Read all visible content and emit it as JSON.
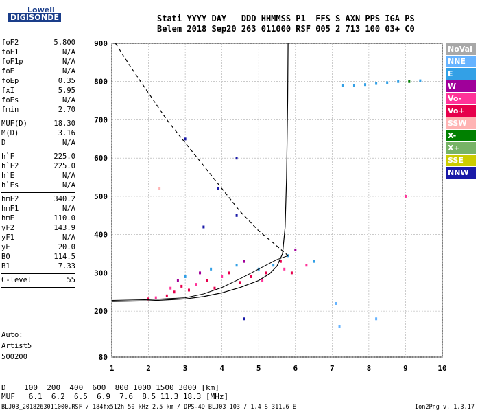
{
  "logo": {
    "top": "Lowell",
    "bottom": "DIGISONDE"
  },
  "header": {
    "line1": "Stati YYYY DAY   DDD HHMMSS P1  FFS S AXN PPS IGA PS",
    "line2": "Belem 2018 Sep20 263 011000 RSF 005 2 713 100 03+ C0"
  },
  "params_group1": [
    {
      "key": "foF2",
      "value": "5.800"
    },
    {
      "key": "foF1",
      "value": "N/A"
    },
    {
      "key": "foF1p",
      "value": "N/A"
    },
    {
      "key": "foE",
      "value": "N/A"
    },
    {
      "key": "foEp",
      "value": "0.35"
    },
    {
      "key": "fxI",
      "value": "5.95"
    },
    {
      "key": "foEs",
      "value": "N/A"
    },
    {
      "key": "fmin",
      "value": "2.70"
    }
  ],
  "params_group2": [
    {
      "key": "MUF(D)",
      "value": "18.30"
    },
    {
      "key": "M(D)",
      "value": "3.16"
    },
    {
      "key": "D",
      "value": "N/A"
    }
  ],
  "params_group3": [
    {
      "key": "h`F",
      "value": "225.0"
    },
    {
      "key": "h`F2",
      "value": "225.0"
    },
    {
      "key": "h`E",
      "value": "N/A"
    },
    {
      "key": "h`Es",
      "value": "N/A"
    }
  ],
  "params_group4": [
    {
      "key": "hmF2",
      "value": "340.2"
    },
    {
      "key": "hmF1",
      "value": "N/A"
    },
    {
      "key": "hmE",
      "value": "110.0"
    },
    {
      "key": "yF2",
      "value": "143.9"
    },
    {
      "key": "yF1",
      "value": "N/A"
    },
    {
      "key": "yE",
      "value": "20.0"
    },
    {
      "key": "B0",
      "value": "114.5"
    },
    {
      "key": "B1",
      "value": "7.33"
    }
  ],
  "clevel": {
    "key": "C-level",
    "value": "55"
  },
  "auto": {
    "line1": "Auto:",
    "line2": "Artist5",
    "line3": "500200"
  },
  "legend": [
    {
      "label": "NoVal",
      "color": "#a8a8a8"
    },
    {
      "label": "NNE",
      "color": "#66b3ff"
    },
    {
      "label": "E",
      "color": "#33a0e6"
    },
    {
      "label": "W",
      "color": "#a0009a"
    },
    {
      "label": "Vo-",
      "color": "#ff3399"
    },
    {
      "label": "Vo+",
      "color": "#e6004c"
    },
    {
      "label": "SSW",
      "color": "#ffb3b3"
    },
    {
      "label": "X-",
      "color": "#008000"
    },
    {
      "label": "X+",
      "color": "#77b366"
    },
    {
      "label": "SSE",
      "color": "#cccc00"
    },
    {
      "label": "NNW",
      "color": "#1a1aa8"
    }
  ],
  "dtable": {
    "row1": "D    100  200  400  600  800 1000 1500 3000 [km]",
    "row2": "MUF   6.1  6.2  6.5  6.9  7.6  8.5 11.3 18.3 [MHz]"
  },
  "footer": {
    "left": "BLJ03_2018263011000.RSF / 184fx512h 50 kHz 2.5 km / DPS-4D BLJ03 103 / 1.4 S 311.6 E",
    "right": "Ion2Png v. 1.3.17"
  },
  "chart_data": {
    "type": "scatter",
    "xlim": [
      1,
      10
    ],
    "ylim": [
      80,
      900
    ],
    "x_ticks": [
      "1",
      "2",
      "3",
      "4",
      "5",
      "6",
      "7",
      "8",
      "9",
      "10"
    ],
    "y_ticks": [
      "80",
      "200",
      "300",
      "400",
      "500",
      "600",
      "700",
      "800",
      "900"
    ],
    "grid": true,
    "ionogram_traces": [
      {
        "x": 2.0,
        "y": 232,
        "color": "#e6004c"
      },
      {
        "x": 2.2,
        "y": 235,
        "color": "#ff3399"
      },
      {
        "x": 2.5,
        "y": 240,
        "color": "#e6004c"
      },
      {
        "x": 2.6,
        "y": 260,
        "color": "#ff3399"
      },
      {
        "x": 2.7,
        "y": 250,
        "color": "#e6004c"
      },
      {
        "x": 2.8,
        "y": 280,
        "color": "#a0009a"
      },
      {
        "x": 2.9,
        "y": 265,
        "color": "#e6004c"
      },
      {
        "x": 3.0,
        "y": 290,
        "color": "#33a0e6"
      },
      {
        "x": 3.1,
        "y": 255,
        "color": "#e6004c"
      },
      {
        "x": 3.3,
        "y": 270,
        "color": "#ff3399"
      },
      {
        "x": 3.4,
        "y": 300,
        "color": "#a0009a"
      },
      {
        "x": 3.6,
        "y": 280,
        "color": "#e6004c"
      },
      {
        "x": 3.7,
        "y": 310,
        "color": "#33a0e6"
      },
      {
        "x": 3.8,
        "y": 260,
        "color": "#e6004c"
      },
      {
        "x": 4.0,
        "y": 290,
        "color": "#ff3399"
      },
      {
        "x": 4.2,
        "y": 300,
        "color": "#e6004c"
      },
      {
        "x": 4.4,
        "y": 320,
        "color": "#33a0e6"
      },
      {
        "x": 4.5,
        "y": 275,
        "color": "#e6004c"
      },
      {
        "x": 4.6,
        "y": 330,
        "color": "#a0009a"
      },
      {
        "x": 4.8,
        "y": 290,
        "color": "#e6004c"
      },
      {
        "x": 5.0,
        "y": 310,
        "color": "#33a0e6"
      },
      {
        "x": 5.1,
        "y": 280,
        "color": "#ff3399"
      },
      {
        "x": 5.2,
        "y": 300,
        "color": "#e6004c"
      },
      {
        "x": 5.4,
        "y": 320,
        "color": "#33a0e6"
      },
      {
        "x": 5.6,
        "y": 330,
        "color": "#e6004c"
      },
      {
        "x": 5.7,
        "y": 310,
        "color": "#ff3399"
      },
      {
        "x": 5.8,
        "y": 345,
        "color": "#33a0e6"
      },
      {
        "x": 5.9,
        "y": 300,
        "color": "#e6004c"
      },
      {
        "x": 6.0,
        "y": 360,
        "color": "#a0009a"
      },
      {
        "x": 6.3,
        "y": 320,
        "color": "#ff3399"
      },
      {
        "x": 6.5,
        "y": 330,
        "color": "#33a0e6"
      },
      {
        "x": 7.3,
        "y": 790,
        "color": "#33a0e6"
      },
      {
        "x": 7.6,
        "y": 790,
        "color": "#33a0e6"
      },
      {
        "x": 7.9,
        "y": 792,
        "color": "#33a0e6"
      },
      {
        "x": 8.2,
        "y": 795,
        "color": "#33a0e6"
      },
      {
        "x": 8.5,
        "y": 797,
        "color": "#33a0e6"
      },
      {
        "x": 8.8,
        "y": 800,
        "color": "#33a0e6"
      },
      {
        "x": 9.1,
        "y": 800,
        "color": "#008000"
      },
      {
        "x": 9.4,
        "y": 802,
        "color": "#33a0e6"
      },
      {
        "x": 4.4,
        "y": 450,
        "color": "#1a1aa8"
      },
      {
        "x": 4.4,
        "y": 600,
        "color": "#1a1aa8"
      },
      {
        "x": 4.6,
        "y": 180,
        "color": "#1a1aa8"
      },
      {
        "x": 3.9,
        "y": 520,
        "color": "#1a1aa8"
      },
      {
        "x": 3.5,
        "y": 420,
        "color": "#1a1aa8"
      },
      {
        "x": 3.0,
        "y": 650,
        "color": "#1a1aa8"
      },
      {
        "x": 7.1,
        "y": 220,
        "color": "#66b3ff"
      },
      {
        "x": 7.2,
        "y": 160,
        "color": "#66b3ff"
      },
      {
        "x": 8.2,
        "y": 180,
        "color": "#66b3ff"
      },
      {
        "x": 9.0,
        "y": 500,
        "color": "#ff3399"
      },
      {
        "x": 2.3,
        "y": 520,
        "color": "#ffb3b3"
      }
    ],
    "dashed_curve": [
      {
        "x": 1.1,
        "y": 900
      },
      {
        "x": 1.5,
        "y": 840
      },
      {
        "x": 2.0,
        "y": 770
      },
      {
        "x": 2.5,
        "y": 700
      },
      {
        "x": 3.0,
        "y": 640
      },
      {
        "x": 3.5,
        "y": 580
      },
      {
        "x": 4.0,
        "y": 520
      },
      {
        "x": 4.5,
        "y": 460
      },
      {
        "x": 5.0,
        "y": 410
      },
      {
        "x": 5.5,
        "y": 370
      },
      {
        "x": 5.8,
        "y": 345
      }
    ],
    "profile_curve": [
      {
        "x": 1.0,
        "y": 225
      },
      {
        "x": 2.0,
        "y": 227
      },
      {
        "x": 3.0,
        "y": 232
      },
      {
        "x": 3.5,
        "y": 238
      },
      {
        "x": 4.0,
        "y": 248
      },
      {
        "x": 4.5,
        "y": 262
      },
      {
        "x": 5.0,
        "y": 280
      },
      {
        "x": 5.3,
        "y": 298
      },
      {
        "x": 5.5,
        "y": 318
      },
      {
        "x": 5.65,
        "y": 350
      },
      {
        "x": 5.72,
        "y": 420
      },
      {
        "x": 5.76,
        "y": 550
      },
      {
        "x": 5.79,
        "y": 750
      },
      {
        "x": 5.8,
        "y": 900
      }
    ],
    "trace_curve": [
      {
        "x": 1.0,
        "y": 228
      },
      {
        "x": 2.0,
        "y": 230
      },
      {
        "x": 3.0,
        "y": 235
      },
      {
        "x": 3.5,
        "y": 245
      },
      {
        "x": 4.0,
        "y": 262
      },
      {
        "x": 4.5,
        "y": 285
      },
      {
        "x": 5.0,
        "y": 310
      },
      {
        "x": 5.5,
        "y": 335
      },
      {
        "x": 5.8,
        "y": 345
      }
    ]
  }
}
